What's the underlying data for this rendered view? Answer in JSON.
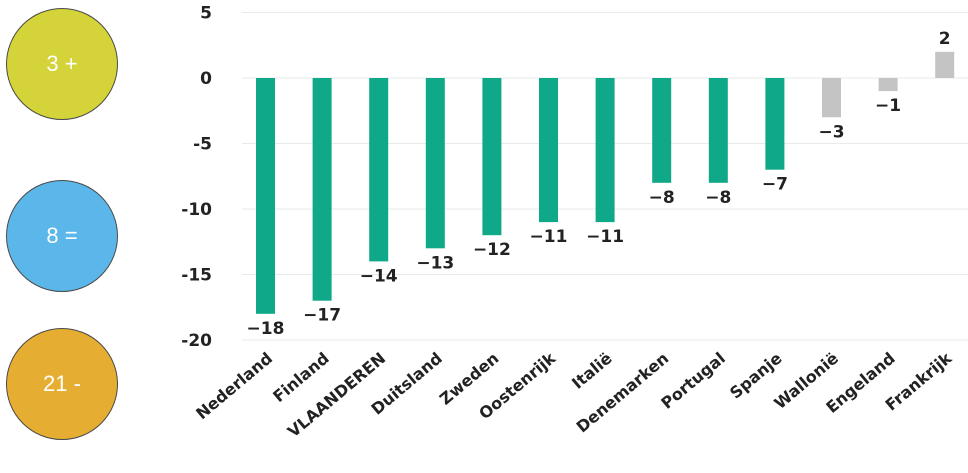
{
  "badges": [
    {
      "label": "3 +",
      "color": "#d4d43a"
    },
    {
      "label": "8 =",
      "color": "#5bb7ea"
    },
    {
      "label": "21 -",
      "color": "#e6ad33"
    }
  ],
  "colors": {
    "teal": "#0fa98a",
    "gray": "#c4c4c4",
    "grid": "#e4ebe8"
  },
  "chart_data": {
    "type": "bar",
    "categories": [
      "Nederland",
      "Finland",
      "VLAANDEREN",
      "Duitsland",
      "Zweden",
      "Oostenrijk",
      "Italië",
      "Denemarken",
      "Portugal",
      "Spanje",
      "Wallonië",
      "Engeland",
      "Frankrijk"
    ],
    "values": [
      -18,
      -17,
      -14,
      -13,
      -12,
      -11,
      -11,
      -8,
      -8,
      -7,
      -3,
      -1,
      2
    ],
    "data_labels": [
      "−18",
      "−17",
      "−14",
      "−13",
      "−12",
      "−11",
      "−11",
      "−8",
      "−8",
      "−7",
      "−3",
      "−1",
      "2"
    ],
    "bar_colors": [
      "teal",
      "teal",
      "teal",
      "teal",
      "teal",
      "teal",
      "teal",
      "teal",
      "teal",
      "teal",
      "gray",
      "gray",
      "gray"
    ],
    "yticks": [
      5,
      0,
      -5,
      -10,
      -15,
      -20
    ],
    "ytick_labels": [
      "5",
      "0",
      "-5",
      "-10",
      "-15",
      "-20"
    ],
    "ylim": [
      -20,
      5
    ],
    "grid": true,
    "title": "",
    "xlabel": "",
    "ylabel": ""
  }
}
